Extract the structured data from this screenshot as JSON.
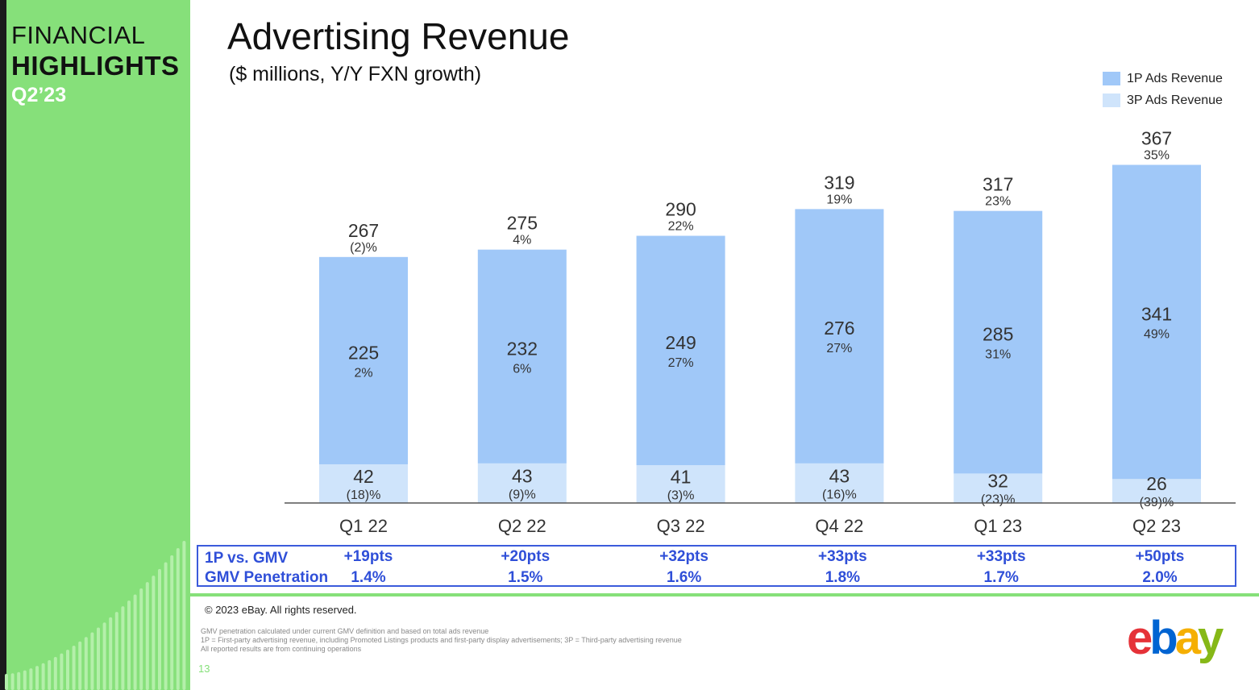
{
  "sidebar": {
    "line1": "FINANCIAL",
    "line2": "HIGHLIGHTS",
    "line3": "Q2’23"
  },
  "title": "Advertising Revenue",
  "subtitle": "($ millions, Y/Y FXN growth)",
  "colors": {
    "sidebar_green": "#86e07a",
    "series_1p": "#a0c8f8",
    "series_3p": "#cfe4fb",
    "gmv_blue": "#2f4fd8",
    "axis": "#555555"
  },
  "chart_data": {
    "type": "bar",
    "stacked": true,
    "title": "Advertising Revenue",
    "categories": [
      "Q1 22",
      "Q2 22",
      "Q3 22",
      "Q4 22",
      "Q1 23",
      "Q2 23"
    ],
    "series": [
      {
        "name": "3P Ads Revenue",
        "values": [
          42,
          43,
          41,
          43,
          32,
          26
        ],
        "growth": [
          "(18)%",
          "(9)%",
          "(3)%",
          "(16)%",
          "(23)%",
          "(39)%"
        ],
        "color": "#cfe4fb"
      },
      {
        "name": "1P Ads Revenue",
        "values": [
          225,
          232,
          249,
          276,
          285,
          341
        ],
        "growth": [
          "2%",
          "6%",
          "27%",
          "27%",
          "31%",
          "49%"
        ],
        "color": "#a0c8f8"
      }
    ],
    "totals": [
      267,
      275,
      290,
      319,
      317,
      367
    ],
    "total_growth": [
      "(2)%",
      "4%",
      "22%",
      "19%",
      "23%",
      "35%"
    ],
    "ylim": [
      0,
      400
    ],
    "legend": {
      "position": "top-right",
      "items": [
        {
          "label": "1P Ads Revenue",
          "color": "#a0c8f8"
        },
        {
          "label": "3P Ads Revenue",
          "color": "#cfe4fb"
        }
      ]
    },
    "grid": false
  },
  "gmv_table": {
    "label1": "1P vs. GMV",
    "label2": "GMV Penetration",
    "pts": [
      "+19pts",
      "+20pts",
      "+32pts",
      "+33pts",
      "+33pts",
      "+50pts"
    ],
    "penetration": [
      "1.4%",
      "1.5%",
      "1.6%",
      "1.8%",
      "1.7%",
      "2.0%"
    ]
  },
  "footer": {
    "copyright": "© 2023 eBay. All rights reserved.",
    "notes": [
      "GMV penetration calculated under current GMV definition and based on total ads revenue",
      "1P = First-party advertising revenue, including Promoted Listings products and first-party display advertisements; 3P = Third-party advertising revenue",
      "All reported results are from continuing operations"
    ],
    "page_number": "13"
  },
  "logo": {
    "letters": [
      "e",
      "b",
      "a",
      "y"
    ],
    "colors": [
      "#e53238",
      "#0064d2",
      "#f5af02",
      "#86b817"
    ]
  }
}
